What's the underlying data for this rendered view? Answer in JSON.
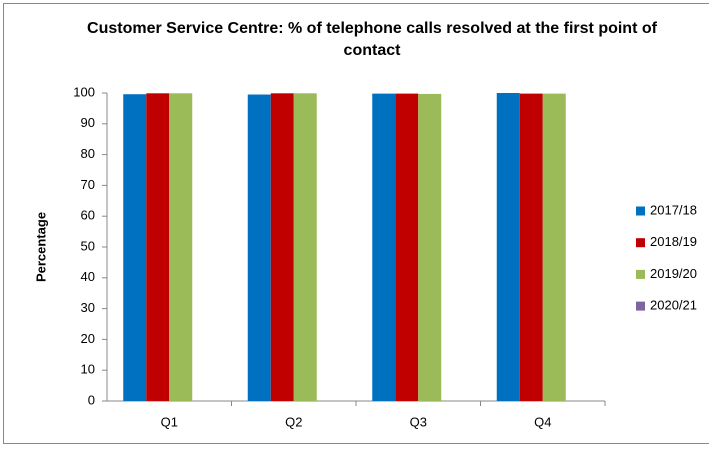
{
  "chart_data": {
    "type": "bar",
    "title": "Customer Service Centre: % of telephone calls resolved at the first point of contact",
    "ylabel": "Percentage",
    "categories": [
      "Q1",
      "Q2",
      "Q3",
      "Q4"
    ],
    "series": [
      {
        "name": "2017/18",
        "color": "#0070c0",
        "values": [
          99.6,
          99.5,
          99.8,
          100
        ]
      },
      {
        "name": "2018/19",
        "color": "#c00000",
        "values": [
          99.9,
          99.9,
          99.8,
          99.8
        ]
      },
      {
        "name": "2019/20",
        "color": "#9bbb59",
        "values": [
          99.9,
          99.9,
          99.7,
          99.8
        ]
      },
      {
        "name": "2020/21",
        "color": "#8064a2",
        "values": [
          null,
          null,
          null,
          null
        ]
      }
    ],
    "ylim": [
      0,
      100
    ],
    "yticks": [
      0,
      10,
      20,
      30,
      40,
      50,
      60,
      70,
      80,
      90,
      100
    ],
    "grid": false,
    "legend": "right"
  }
}
